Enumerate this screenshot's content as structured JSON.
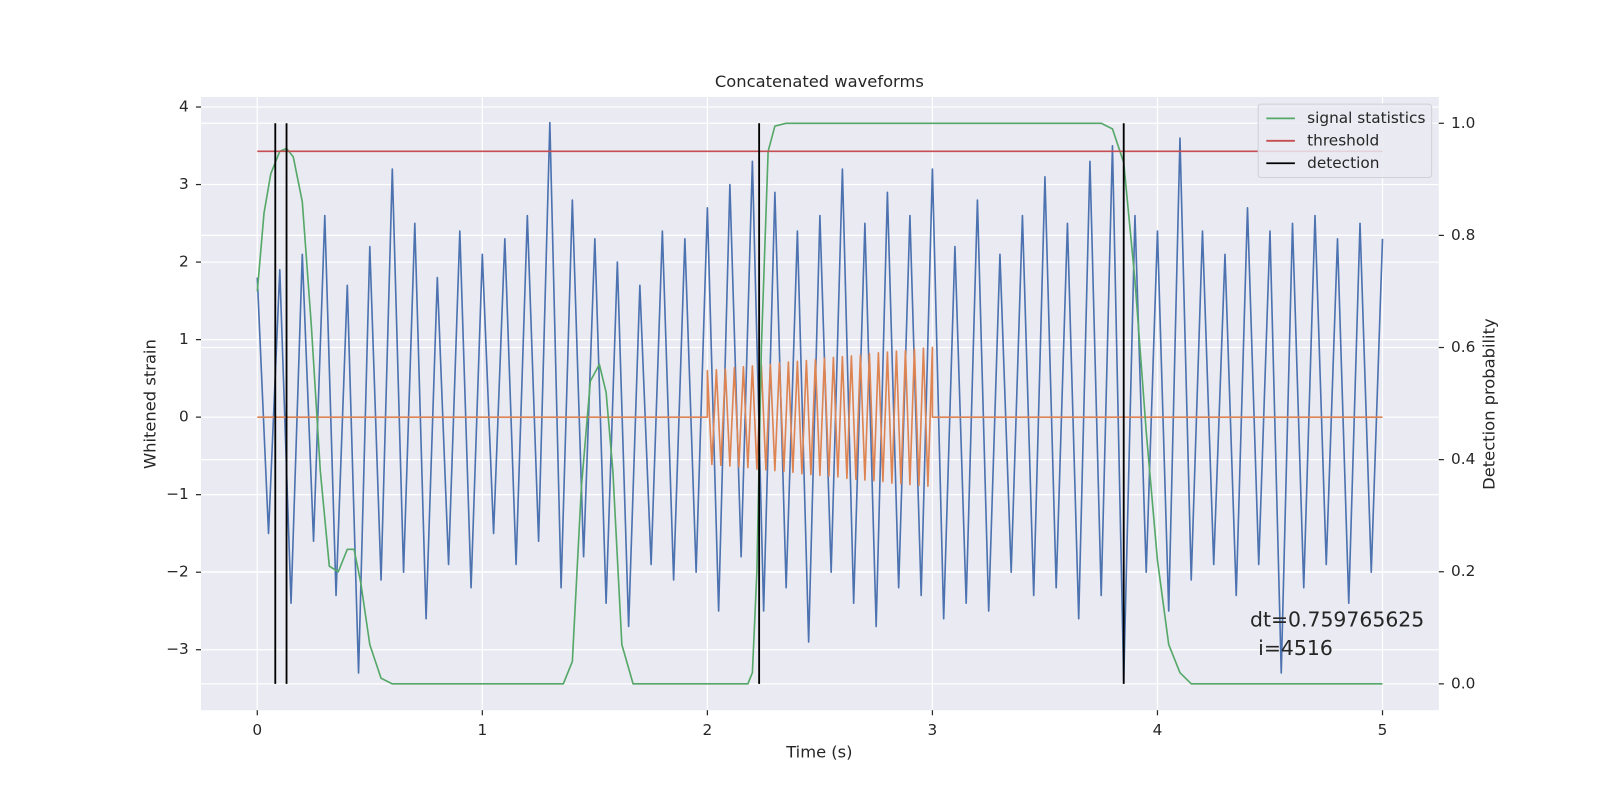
{
  "chart_data": {
    "type": "line",
    "title": "Concatenated waveforms",
    "xlabel": "Time (s)",
    "ylabel": "Whitened strain",
    "y2label": "Detection probability",
    "xlim": [
      -0.25,
      5.25
    ],
    "ylim": [
      -3.78,
      4.13
    ],
    "y2lim": [
      -0.047,
      1.047
    ],
    "xticks": [
      0,
      1,
      2,
      3,
      4,
      5
    ],
    "yticks": [
      {
        "value": -3,
        "label": "−3"
      },
      {
        "value": -2,
        "label": "−2"
      },
      {
        "value": -1,
        "label": "−1"
      },
      0,
      1,
      2,
      3,
      4
    ],
    "y2ticks": [
      {
        "value": 0,
        "label": "0.0"
      },
      0.2,
      0.4,
      0.6,
      0.8,
      {
        "value": 1,
        "label": "1.0"
      }
    ],
    "grid": true,
    "legend": "upper right",
    "series": [
      {
        "color": "#4c72b0",
        "x": [
          0,
          0.05,
          0.1,
          0.15,
          0.2,
          0.25,
          0.3,
          0.35,
          0.4,
          0.45,
          0.5,
          0.55,
          0.6,
          0.65,
          0.7,
          0.75,
          0.8,
          0.85,
          0.9,
          0.95,
          1,
          1.05,
          1.1,
          1.15,
          1.2,
          1.25,
          1.3,
          1.35,
          1.4,
          1.45,
          1.5,
          1.55,
          1.6,
          1.65,
          1.7,
          1.75,
          1.8,
          1.85,
          1.9,
          1.95,
          2,
          2.05,
          2.1,
          2.15,
          2.2,
          2.25,
          2.3,
          2.35,
          2.4,
          2.45,
          2.5,
          2.55,
          2.6,
          2.65,
          2.7,
          2.75,
          2.8,
          2.85,
          2.9,
          2.95,
          3,
          3.05,
          3.1,
          3.15,
          3.2,
          3.25,
          3.3,
          3.35,
          3.4,
          3.45,
          3.5,
          3.55,
          3.6,
          3.65,
          3.7,
          3.75,
          3.8,
          3.85,
          3.9,
          3.95,
          4,
          4.05,
          4.1,
          4.15,
          4.2,
          4.25,
          4.3,
          4.35,
          4.4,
          4.45,
          4.5,
          4.55,
          4.6,
          4.65,
          4.7,
          4.75,
          4.8,
          4.85,
          4.9,
          4.95,
          5
        ],
        "values": [
          1.8,
          -1.5,
          1.9,
          -2.4,
          2.1,
          -1.6,
          2.6,
          -2.3,
          1.7,
          -3.3,
          2.2,
          -2.1,
          3.2,
          -2.0,
          2.5,
          -2.6,
          1.8,
          -1.9,
          2.4,
          -2.2,
          2.1,
          -1.5,
          2.3,
          -1.9,
          2.6,
          -1.6,
          3.8,
          -2.2,
          2.8,
          -1.8,
          2.3,
          -2.4,
          2.0,
          -2.7,
          1.7,
          -1.9,
          2.4,
          -2.1,
          2.3,
          -2.0,
          2.7,
          -2.5,
          3.0,
          -1.8,
          3.3,
          -2.5,
          2.9,
          -2.2,
          2.4,
          -2.9,
          2.6,
          -2.0,
          3.2,
          -2.4,
          2.5,
          -2.7,
          2.9,
          -2.2,
          2.6,
          -2.3,
          3.2,
          -2.6,
          2.2,
          -2.4,
          2.8,
          -2.5,
          2.1,
          -2.0,
          2.6,
          -2.3,
          3.1,
          -2.2,
          2.5,
          -2.6,
          3.3,
          -2.3,
          3.5,
          -3.4,
          2.6,
          -2.0,
          2.4,
          -2.5,
          3.6,
          -2.1,
          2.4,
          -1.9,
          2.1,
          -2.3,
          2.7,
          -1.9,
          2.4,
          -3.3,
          2.5,
          -2.2,
          2.6,
          -1.9,
          2.3,
          -2.4,
          2.5,
          -2.0,
          2.3
        ]
      },
      {
        "color": "#dd8452",
        "x": [
          0,
          2,
          2,
          2.02,
          2.04,
          2.06,
          2.08,
          2.1,
          2.12,
          2.14,
          2.16,
          2.18,
          2.2,
          2.22,
          2.24,
          2.26,
          2.28,
          2.3,
          2.32,
          2.34,
          2.36,
          2.38,
          2.4,
          2.42,
          2.44,
          2.46,
          2.48,
          2.5,
          2.52,
          2.54,
          2.56,
          2.58,
          2.6,
          2.62,
          2.64,
          2.66,
          2.68,
          2.7,
          2.72,
          2.74,
          2.76,
          2.78,
          2.8,
          2.82,
          2.84,
          2.86,
          2.88,
          2.9,
          2.92,
          2.94,
          2.96,
          2.98,
          3,
          3,
          5
        ],
        "values": [
          0,
          0,
          0.6,
          -0.61,
          0.61,
          -0.62,
          0.62,
          -0.63,
          0.64,
          -0.64,
          0.65,
          -0.65,
          0.66,
          -0.67,
          0.67,
          -0.68,
          0.68,
          -0.69,
          0.7,
          -0.7,
          0.71,
          -0.71,
          0.72,
          -0.73,
          0.73,
          -0.74,
          0.74,
          -0.75,
          0.76,
          -0.76,
          0.77,
          -0.77,
          0.78,
          -0.79,
          0.79,
          -0.8,
          0.8,
          -0.81,
          0.82,
          -0.82,
          0.83,
          -0.83,
          0.84,
          -0.85,
          0.85,
          -0.86,
          0.86,
          -0.87,
          0.88,
          -0.88,
          0.89,
          -0.89,
          0.9,
          0,
          0
        ]
      },
      {
        "name": "signal statistics",
        "color": "#55a868",
        "axis": "y2",
        "x": [
          0,
          0.03,
          0.06,
          0.1,
          0.13,
          0.16,
          0.2,
          0.24,
          0.28,
          0.32,
          0.36,
          0.4,
          0.43,
          0.46,
          0.5,
          0.55,
          0.6,
          1.36,
          1.4,
          1.44,
          1.48,
          1.52,
          1.55,
          1.58,
          1.62,
          1.67,
          2.18,
          2.2,
          2.22,
          2.24,
          2.27,
          2.3,
          2.35,
          3.75,
          3.8,
          3.85,
          3.9,
          3.95,
          4.0,
          4.05,
          4.1,
          4.15,
          5.0
        ],
        "values": [
          0.7,
          0.84,
          0.91,
          0.95,
          0.955,
          0.94,
          0.86,
          0.64,
          0.38,
          0.21,
          0.2,
          0.24,
          0.24,
          0.18,
          0.07,
          0.01,
          0,
          0,
          0.04,
          0.35,
          0.54,
          0.57,
          0.52,
          0.38,
          0.07,
          0,
          0,
          0.02,
          0.2,
          0.6,
          0.95,
          0.995,
          1.0,
          1.0,
          0.99,
          0.93,
          0.72,
          0.45,
          0.22,
          0.07,
          0.02,
          0,
          0
        ]
      },
      {
        "name": "threshold",
        "color": "#c44e52",
        "axis": "y2",
        "x": [
          0,
          5
        ],
        "values": [
          0.95,
          0.95
        ]
      }
    ],
    "detection": {
      "name": "detection",
      "color": "#000000",
      "x": [
        0.08,
        0.13,
        2.23,
        3.85
      ],
      "ymin": 0,
      "ymax": 1
    },
    "annotation": [
      "dt=0.759765625",
      "i=4516"
    ]
  }
}
